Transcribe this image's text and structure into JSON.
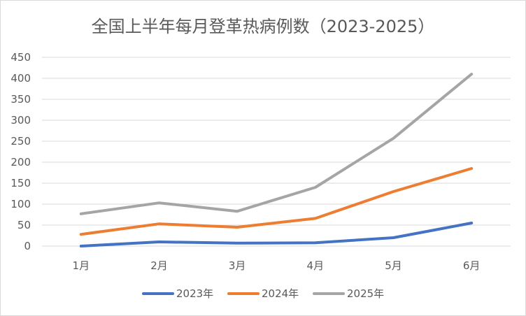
{
  "chart_data": {
    "type": "line",
    "title": "全国上半年每月登革热病例数（2023-2025）",
    "categories": [
      "1月",
      "2月",
      "3月",
      "4月",
      "5月",
      "6月"
    ],
    "series": [
      {
        "name": "2023年",
        "color": "#4472c4",
        "values": [
          0,
          10,
          7,
          8,
          20,
          55
        ]
      },
      {
        "name": "2024年",
        "color": "#ed7d31",
        "values": [
          28,
          53,
          45,
          66,
          130,
          185
        ]
      },
      {
        "name": "2025年",
        "color": "#a5a5a5",
        "values": [
          77,
          103,
          83,
          140,
          257,
          410
        ]
      }
    ],
    "ylim": [
      0,
      450
    ],
    "yticks": [
      0,
      50,
      100,
      150,
      200,
      250,
      300,
      350,
      400,
      450
    ],
    "grid": true,
    "legend": "bottom"
  }
}
